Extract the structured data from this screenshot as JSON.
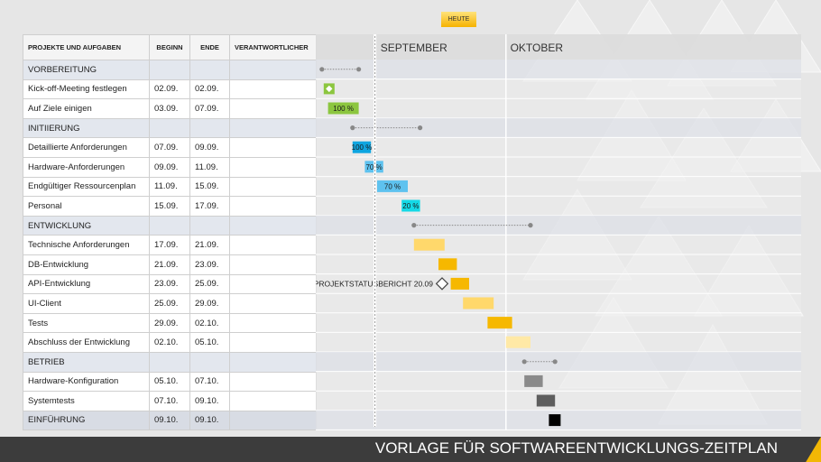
{
  "footer": {
    "title": "VORLAGE FÜR SOFTWAREENTWICKLUNGS-ZEITPLAN"
  },
  "table": {
    "headers": {
      "task": "PROJEKTE UND AUFGABEN",
      "begin": "BEGINN",
      "end": "ENDE",
      "owner": "VERANTWORTLICHER"
    },
    "rows": [
      {
        "label": "VORBEREITUNG",
        "begin": "",
        "end": "",
        "owner": "",
        "phase": true
      },
      {
        "label": "Kick-off-Meeting festlegen",
        "begin": "02.09.",
        "end": "02.09.",
        "owner": ""
      },
      {
        "label": "Auf Ziele einigen",
        "begin": "03.09.",
        "end": "07.09.",
        "owner": ""
      },
      {
        "label": "INITIIERUNG",
        "begin": "",
        "end": "",
        "owner": "",
        "phase": true
      },
      {
        "label": "Detaillierte Anforderungen",
        "begin": "07.09.",
        "end": "09.09.",
        "owner": ""
      },
      {
        "label": "Hardware-Anforderungen",
        "begin": "09.09.",
        "end": "11.09.",
        "owner": ""
      },
      {
        "label": "Endgültiger Ressourcenplan",
        "begin": "11.09.",
        "end": "15.09.",
        "owner": ""
      },
      {
        "label": "Personal",
        "begin": "15.09.",
        "end": "17.09.",
        "owner": ""
      },
      {
        "label": "ENTWICKLUNG",
        "begin": "",
        "end": "",
        "owner": "",
        "phase": true
      },
      {
        "label": "Technische Anforderungen",
        "begin": "17.09.",
        "end": "21.09.",
        "owner": ""
      },
      {
        "label": "DB-Entwicklung",
        "begin": "21.09.",
        "end": "23.09.",
        "owner": ""
      },
      {
        "label": "API-Entwicklung",
        "begin": "23.09.",
        "end": "25.09.",
        "owner": ""
      },
      {
        "label": "UI-Client",
        "begin": "25.09.",
        "end": "29.09.",
        "owner": ""
      },
      {
        "label": "Tests",
        "begin": "29.09.",
        "end": "02.10.",
        "owner": ""
      },
      {
        "label": "Abschluss der Entwicklung",
        "begin": "02.10.",
        "end": "05.10.",
        "owner": ""
      },
      {
        "label": "BETRIEB",
        "begin": "",
        "end": "",
        "owner": "",
        "phase": true
      },
      {
        "label": "Hardware-Konfiguration",
        "begin": "05.10.",
        "end": "07.10.",
        "owner": ""
      },
      {
        "label": "Systemtests",
        "begin": "07.10.",
        "end": "09.10.",
        "owner": ""
      },
      {
        "label": "EINFÜHRUNG",
        "begin": "09.10.",
        "end": "09.10.",
        "owner": "",
        "phase": true,
        "last": true
      }
    ]
  },
  "chart_data": {
    "type": "gantt",
    "months": [
      "SEPTEMBER",
      "OKTOBER"
    ],
    "today_label": "HEUTE",
    "today_date": "2024-09-10",
    "milestone_label": "PROJEKTSTATUSBERICHT 20.09",
    "milestone_date": "2024-09-20",
    "colors": {
      "green": "#8cc63f",
      "blue_dark": "#0ea5e0",
      "blue_light": "#5ec2ef",
      "cyan": "#14d9e6",
      "gold_light": "#ffd86b",
      "gold": "#f6b800",
      "gold_pale": "#ffe9a6",
      "gray": "#8a8a8a",
      "gray_dark": "#5e5e5e",
      "black": "#000000"
    },
    "tasks": [
      {
        "kind": "summary",
        "start": "2024-09-02",
        "end": "2024-09-07"
      },
      {
        "kind": "milestone",
        "start": "2024-09-02",
        "end": "2024-09-02",
        "color": "green"
      },
      {
        "kind": "bar",
        "start": "2024-09-03",
        "end": "2024-09-07",
        "color": "green",
        "progress": "100 %"
      },
      {
        "kind": "summary",
        "start": "2024-09-07",
        "end": "2024-09-17"
      },
      {
        "kind": "bar",
        "start": "2024-09-07",
        "end": "2024-09-09",
        "color": "blue_dark",
        "progress": "100 %"
      },
      {
        "kind": "bar",
        "start": "2024-09-09",
        "end": "2024-09-11",
        "color": "blue_light",
        "progress": "70 %"
      },
      {
        "kind": "bar",
        "start": "2024-09-11",
        "end": "2024-09-15",
        "color": "blue_light",
        "progress": "70 %"
      },
      {
        "kind": "bar",
        "start": "2024-09-15",
        "end": "2024-09-17",
        "color": "cyan",
        "progress": "20 %"
      },
      {
        "kind": "summary",
        "start": "2024-09-17",
        "end": "2024-10-05"
      },
      {
        "kind": "bar",
        "start": "2024-09-17",
        "end": "2024-09-21",
        "color": "gold_light"
      },
      {
        "kind": "bar",
        "start": "2024-09-21",
        "end": "2024-09-23",
        "color": "gold"
      },
      {
        "kind": "bar",
        "start": "2024-09-23",
        "end": "2024-09-25",
        "color": "gold"
      },
      {
        "kind": "bar",
        "start": "2024-09-25",
        "end": "2024-09-29",
        "color": "gold_light"
      },
      {
        "kind": "bar",
        "start": "2024-09-29",
        "end": "2024-10-02",
        "color": "gold"
      },
      {
        "kind": "bar",
        "start": "2024-10-02",
        "end": "2024-10-05",
        "color": "gold_pale"
      },
      {
        "kind": "summary",
        "start": "2024-10-05",
        "end": "2024-10-09"
      },
      {
        "kind": "bar",
        "start": "2024-10-05",
        "end": "2024-10-07",
        "color": "gray"
      },
      {
        "kind": "bar",
        "start": "2024-10-07",
        "end": "2024-10-09",
        "color": "gray_dark"
      },
      {
        "kind": "bar",
        "start": "2024-10-09",
        "end": "2024-10-09",
        "color": "black"
      }
    ]
  }
}
